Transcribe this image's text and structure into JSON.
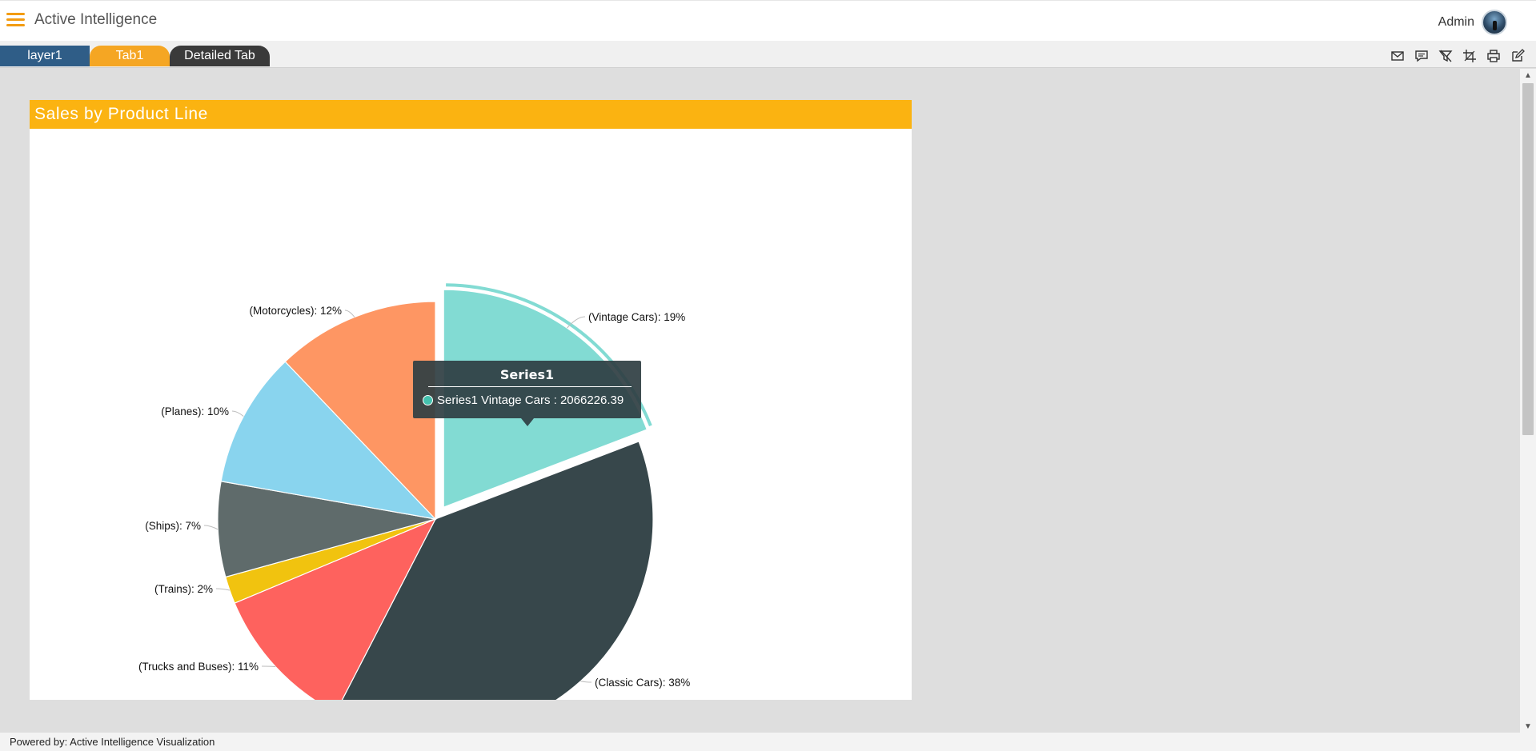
{
  "app": {
    "title": "Active Intelligence",
    "user": "Admin"
  },
  "tabs": [
    {
      "label": "layer1"
    },
    {
      "label": "Tab1"
    },
    {
      "label": "Detailed Tab"
    }
  ],
  "toolbar": {
    "icons": [
      "mail-icon",
      "comment-icon",
      "clear-filter-icon",
      "crop-icon",
      "print-icon",
      "edit-icon"
    ]
  },
  "panel": {
    "title": "Sales by Product Line"
  },
  "tooltip": {
    "title": "Series1",
    "text": "Series1 Vintage Cars : 2066226.39"
  },
  "footer": {
    "text": "Powered by: Active Intelligence Visualization"
  },
  "chart_data": {
    "type": "pie",
    "series": [
      {
        "name": "Series1",
        "slices": [
          {
            "category": "Vintage Cars",
            "percent": 19,
            "label": "(Vintage Cars): 19%",
            "color": "#82dbd3",
            "value": 2066226.39
          },
          {
            "category": "Classic Cars",
            "percent": 38,
            "label": "(Classic Cars): 38%",
            "color": "#37474b"
          },
          {
            "category": "Trucks and Buses",
            "percent": 11,
            "label": "(Trucks and Buses): 11%",
            "color": "#fe625e"
          },
          {
            "category": "Trains",
            "percent": 2,
            "label": "(Trains): 2%",
            "color": "#f1c30f"
          },
          {
            "category": "Ships",
            "percent": 7,
            "label": "(Ships): 7%",
            "color": "#5f6b6b"
          },
          {
            "category": "Planes",
            "percent": 10,
            "label": "(Planes): 10%",
            "color": "#89d4ee"
          },
          {
            "category": "Motorcycles",
            "percent": 12,
            "label": "(Motorcycles): 12%",
            "color": "#fe9663"
          }
        ]
      }
    ],
    "highlighted": "Vintage Cars",
    "legend": "none"
  }
}
